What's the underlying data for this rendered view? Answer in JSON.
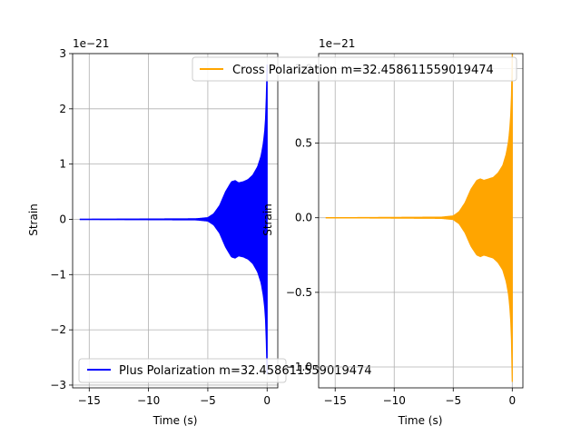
{
  "chart_data": [
    {
      "type": "line",
      "xlabel": "Time (s)",
      "ylabel": "Strain",
      "offset_text": "1e−21",
      "xlim": [
        -16.4,
        0.9
      ],
      "ylim": [
        -3.05,
        3.0
      ],
      "xticks": [
        -15,
        -10,
        -5,
        0
      ],
      "xtick_labels": [
        "−15",
        "−10",
        "−5",
        "0"
      ],
      "yticks": [
        -3,
        -2,
        -1,
        0,
        1,
        2,
        3
      ],
      "ytick_labels": [
        "−3",
        "−2",
        "−1",
        "0",
        "1",
        "2",
        "3"
      ],
      "grid": true,
      "legend_position": "lower-left",
      "series": [
        {
          "name": "Plus Polarization m=32.458611559019474",
          "color": "#0000ff",
          "envelope": {
            "t": [
              -15.8,
              -6.0,
              -5.0,
              -4.5,
              -4.0,
              -3.5,
              -3.0,
              -2.7,
              -2.4,
              -2.0,
              -1.6,
              -1.2,
              -0.8,
              -0.5,
              -0.3,
              -0.15,
              -0.05,
              0.0
            ],
            "amp": [
              0.0,
              0.01,
              0.03,
              0.1,
              0.25,
              0.5,
              0.68,
              0.7,
              0.66,
              0.68,
              0.72,
              0.8,
              0.95,
              1.15,
              1.4,
              1.7,
              2.3,
              2.8
            ]
          }
        }
      ]
    },
    {
      "type": "line",
      "xlabel": "Time (s)",
      "ylabel": "Strain",
      "offset_text": "1e−21",
      "xlim": [
        -16.4,
        0.9
      ],
      "ylim": [
        -1.14,
        1.1
      ],
      "xticks": [
        -15,
        -10,
        -5,
        0
      ],
      "xtick_labels": [
        "−15",
        "−10",
        "−5",
        "0"
      ],
      "yticks": [
        -1.0,
        -0.5,
        0.0,
        0.5,
        1.0
      ],
      "ytick_labels": [
        "−1.0",
        "−0.5",
        "0.0",
        "0.5",
        "1.0"
      ],
      "grid": true,
      "legend_position": "upper-right",
      "series": [
        {
          "name": "Cross Polarization m=32.458611559019474",
          "color": "#ffa500",
          "envelope": {
            "t": [
              -15.8,
              -6.0,
              -5.0,
              -4.5,
              -4.0,
              -3.5,
              -3.0,
              -2.7,
              -2.4,
              -2.0,
              -1.6,
              -1.2,
              -0.8,
              -0.5,
              -0.3,
              -0.15,
              -0.05,
              0.0
            ],
            "amp": [
              0.0,
              0.004,
              0.012,
              0.04,
              0.1,
              0.19,
              0.25,
              0.26,
              0.25,
              0.26,
              0.27,
              0.3,
              0.35,
              0.43,
              0.52,
              0.65,
              0.85,
              1.1
            ]
          }
        }
      ]
    }
  ]
}
